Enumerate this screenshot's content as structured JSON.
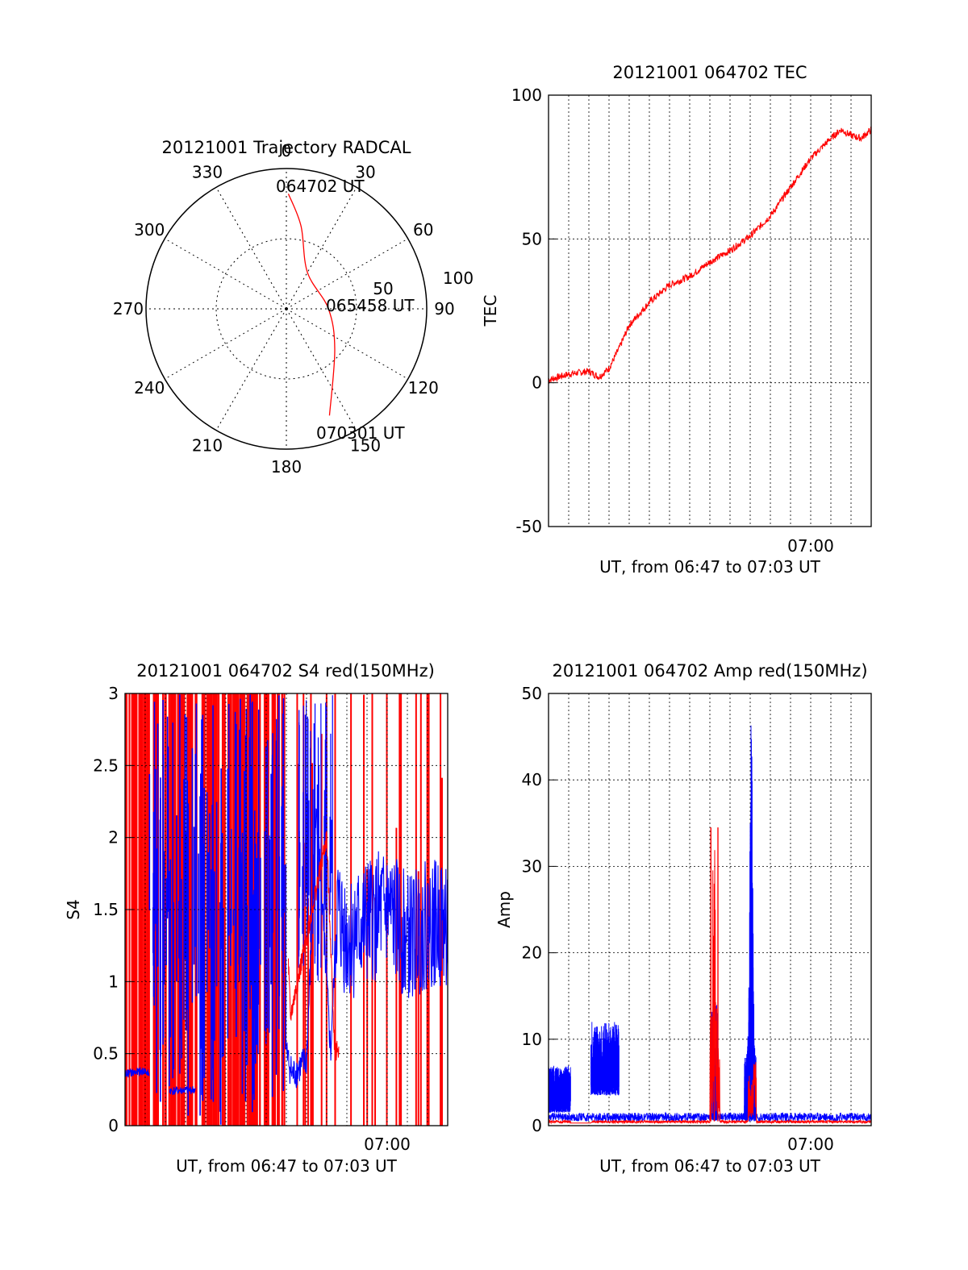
{
  "chart_data": [
    {
      "type": "polar",
      "title": "20121001 Trajectory RADCAL",
      "angle_labels": [
        "0",
        "30",
        "60",
        "90",
        "120",
        "150",
        "180",
        "210",
        "240",
        "270",
        "300",
        "330"
      ],
      "radial_labels": [
        "50",
        "100"
      ],
      "rmax": 100,
      "annotations": [
        "064702 UT",
        "065458 UT",
        "070301 UT"
      ],
      "trajectory": {
        "color": "#ff0000",
        "points": [
          [
            1,
            82
          ],
          [
            10,
            60
          ],
          [
            30,
            30
          ],
          [
            90,
            30
          ],
          [
            130,
            45
          ],
          [
            158,
            82
          ]
        ]
      }
    },
    {
      "type": "line",
      "title": "20121001 064702 TEC",
      "xlabel": "UT, from 06:47 to 07:03 UT",
      "ylabel": "TEC",
      "xlim": [
        0,
        16
      ],
      "ylim": [
        -50,
        100
      ],
      "yticks": [
        "100",
        "50",
        "0",
        "-50"
      ],
      "xticks": [
        {
          "x": 13,
          "label": "07:00"
        }
      ],
      "grid": true,
      "series": [
        {
          "color": "#ff0000",
          "x": [
            0,
            1,
            2,
            2.5,
            3,
            3.5,
            4,
            5,
            6,
            7,
            8,
            9,
            10,
            11,
            12,
            13,
            14,
            14.5,
            15,
            15.5,
            16
          ],
          "y": [
            1,
            3,
            4,
            2,
            5,
            12,
            20,
            28,
            34,
            37,
            42,
            46,
            51,
            58,
            68,
            78,
            85,
            88,
            86,
            85,
            88
          ]
        }
      ]
    },
    {
      "type": "line",
      "title": "20121001 064702 S4 red(150MHz)",
      "xlabel": "UT, from 06:47 to 07:03 UT",
      "ylabel": "S4",
      "xlim": [
        0,
        16
      ],
      "ylim": [
        0,
        3
      ],
      "yticks": [
        "3",
        "2.5",
        "2",
        "1.5",
        "1",
        "0.5",
        "0"
      ],
      "xticks": [
        {
          "x": 13,
          "label": "07:00"
        }
      ],
      "grid": true,
      "series": [
        {
          "color": "#0000ff",
          "x": [
            0,
            1,
            1.2,
            2.2,
            2.3,
            3.5,
            8,
            8.3,
            9,
            9.5,
            10.2,
            10.5,
            11,
            12,
            13,
            14,
            15,
            16
          ],
          "y": [
            0.36,
            0.38,
            0.35,
            0.25,
            0.24,
            0.25,
            0.5,
            0.35,
            0.45,
            2.2,
            0.5,
            1.5,
            1.3,
            1.4,
            1.5,
            1.3,
            1.4,
            1.4
          ]
        },
        {
          "color": "#ff0000",
          "x": [
            0,
            8,
            8.2,
            10,
            10.4,
            16
          ],
          "y": [
            1.5,
            1.5,
            0.75,
            2.0,
            0.5,
            1.5
          ]
        }
      ]
    },
    {
      "type": "line",
      "title": "20121001 064702 Amp red(150MHz)",
      "xlabel": "UT, from 06:47 to 07:03 UT",
      "ylabel": "Amp",
      "xlim": [
        0,
        16
      ],
      "ylim": [
        0,
        50
      ],
      "yticks": [
        "50",
        "40",
        "30",
        "20",
        "10",
        "0"
      ],
      "xticks": [
        {
          "x": 13,
          "label": "07:00"
        }
      ],
      "grid": true,
      "series": [
        {
          "color": "#0000ff",
          "x": [
            0,
            1.1,
            1.2,
            2.1,
            2.2,
            3.5,
            3.6,
            8,
            8.1,
            8.4,
            8.5,
            9.7,
            9.9,
            10.2,
            10.3,
            16
          ],
          "y": [
            4,
            4,
            0.5,
            0.5,
            7,
            7,
            0.6,
            0.6,
            1.2,
            12,
            0.8,
            0.8,
            25,
            48,
            1,
            1
          ]
        },
        {
          "color": "#ff0000",
          "x": [
            0,
            3.6,
            8,
            8.1,
            8.2,
            8.3,
            8.4,
            8.5,
            9.9,
            10.0,
            10.1,
            10.3,
            16
          ],
          "y": [
            0.4,
            0.4,
            0.4,
            30,
            34,
            25,
            34,
            0.4,
            0.4,
            4,
            7,
            0.4,
            0.4
          ]
        }
      ]
    }
  ]
}
